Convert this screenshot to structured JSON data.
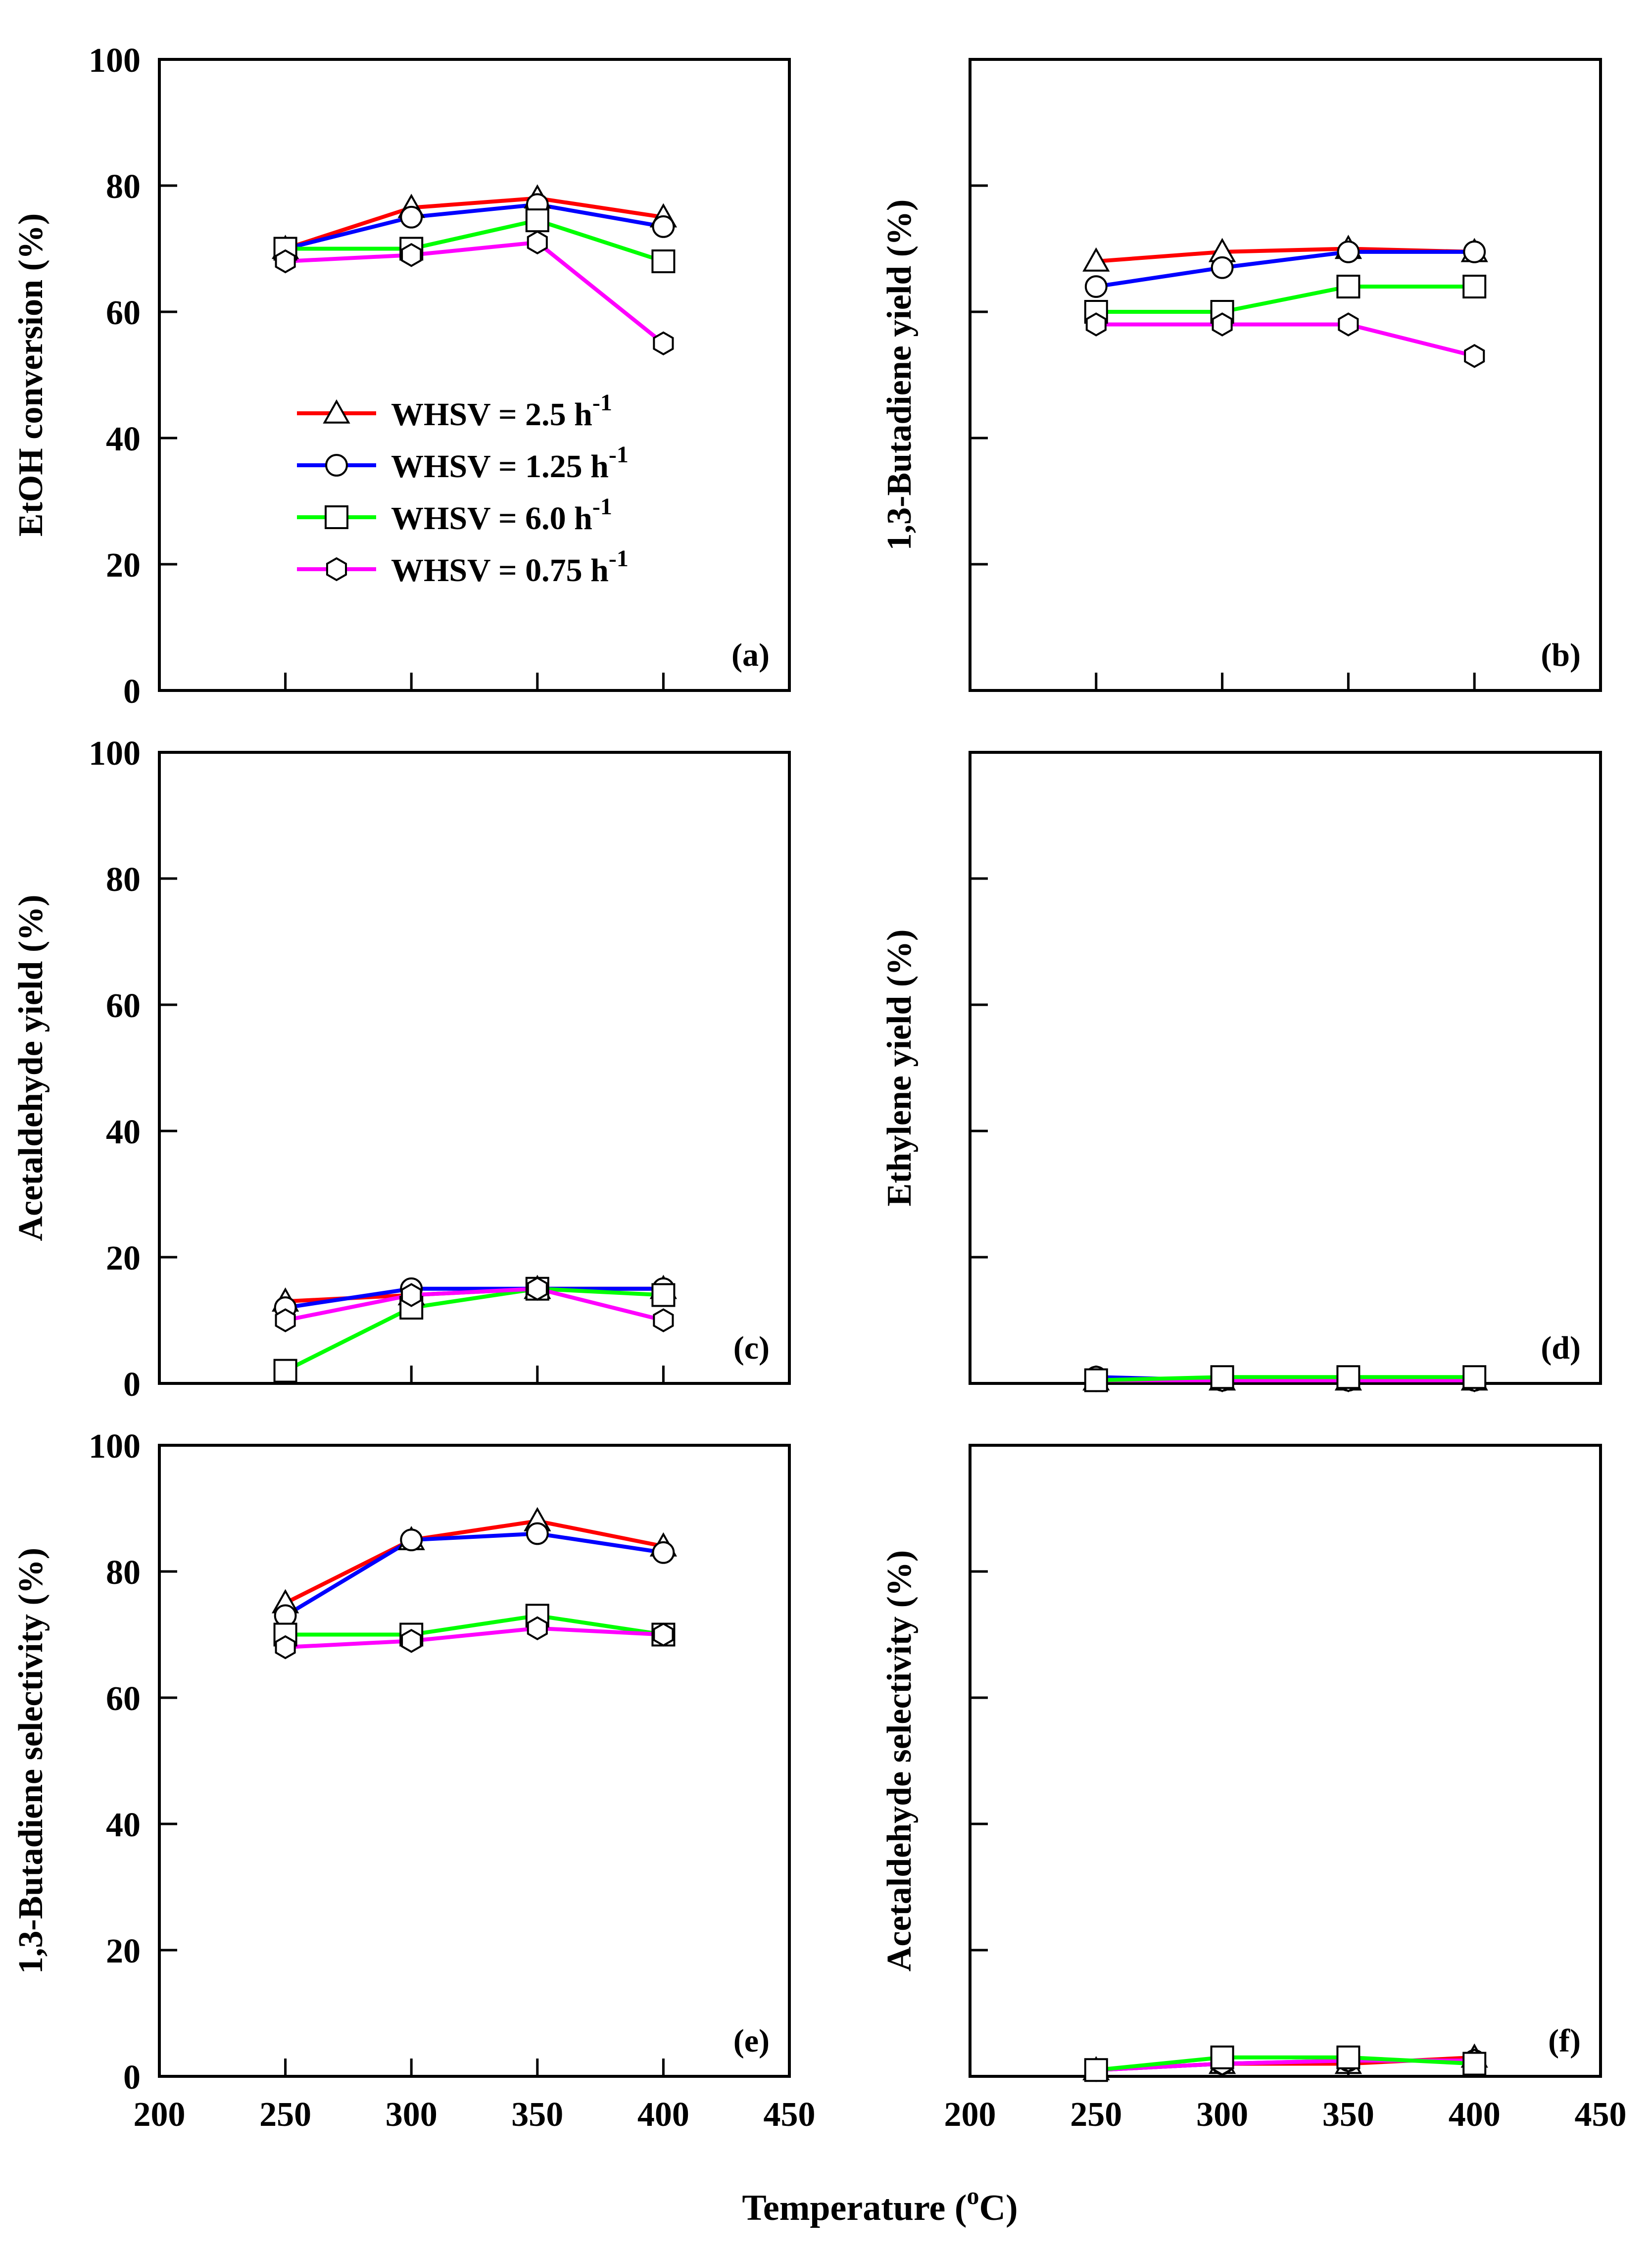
{
  "figure": {
    "xlabel_main": "Temperature (",
    "xlabel_sup": "o",
    "xlabel_tail": "C)"
  },
  "legend": {
    "label_prefix": "WHSV = ",
    "unit": "h",
    "unit_sup": "-1"
  },
  "chart_data": [
    {
      "type": "line",
      "panel": "(a)",
      "ylabel": "EtOH conversion (%)",
      "xlim": [
        200,
        450
      ],
      "ylim": [
        0,
        100
      ],
      "xticks": [
        200,
        250,
        300,
        350,
        400,
        450
      ],
      "yticks": [
        0,
        20,
        40,
        60,
        80,
        100
      ],
      "show_xticklabels": false,
      "show_yticklabels": true,
      "legend": "center-left",
      "x": [
        250,
        300,
        350,
        400
      ],
      "series": [
        {
          "name": "WHSV = 2.5 h-1",
          "value_label": "2.5",
          "color": "#ff0000",
          "marker": "triangle",
          "values": [
            70,
            76.5,
            78,
            75
          ]
        },
        {
          "name": "WHSV = 1.25 h-1",
          "value_label": "1.25",
          "color": "#0000ff",
          "marker": "circle",
          "values": [
            70,
            75,
            77,
            73.5
          ]
        },
        {
          "name": "WHSV = 6.0 h-1",
          "value_label": "6.0",
          "color": "#00ff00",
          "marker": "square",
          "values": [
            70,
            70,
            74.5,
            68
          ]
        },
        {
          "name": "WHSV = 0.75 h-1",
          "value_label": "0.75",
          "color": "#ff00ff",
          "marker": "hexagon",
          "values": [
            68,
            69,
            71,
            55
          ]
        }
      ]
    },
    {
      "type": "line",
      "panel": "(b)",
      "ylabel": "1,3-Butadiene yield (%)",
      "xlim": [
        200,
        450
      ],
      "ylim": [
        0,
        100
      ],
      "xticks": [
        200,
        250,
        300,
        350,
        400,
        450
      ],
      "yticks": [
        0,
        20,
        40,
        60,
        80,
        100
      ],
      "show_xticklabels": false,
      "show_yticklabels": false,
      "x": [
        250,
        300,
        350,
        400
      ],
      "series": [
        {
          "name": "WHSV = 2.5 h-1",
          "color": "#ff0000",
          "marker": "triangle",
          "values": [
            68,
            69.5,
            70,
            69.5
          ]
        },
        {
          "name": "WHSV = 1.25 h-1",
          "color": "#0000ff",
          "marker": "circle",
          "values": [
            64,
            67,
            69.5,
            69.5
          ]
        },
        {
          "name": "WHSV = 6.0 h-1",
          "color": "#00ff00",
          "marker": "square",
          "values": [
            60,
            60,
            64,
            64
          ]
        },
        {
          "name": "WHSV = 0.75 h-1",
          "color": "#ff00ff",
          "marker": "hexagon",
          "values": [
            58,
            58,
            58,
            53
          ]
        }
      ]
    },
    {
      "type": "line",
      "panel": "(c)",
      "ylabel": "Acetaldehyde yield (%)",
      "xlim": [
        200,
        450
      ],
      "ylim": [
        0,
        100
      ],
      "xticks": [
        200,
        250,
        300,
        350,
        400,
        450
      ],
      "yticks": [
        0,
        20,
        40,
        60,
        80,
        100
      ],
      "show_xticklabels": false,
      "show_yticklabels": true,
      "x": [
        250,
        300,
        350,
        400
      ],
      "series": [
        {
          "name": "WHSV = 2.5 h-1",
          "color": "#ff0000",
          "marker": "triangle",
          "values": [
            13,
            14,
            15,
            15
          ]
        },
        {
          "name": "WHSV = 1.25 h-1",
          "color": "#0000ff",
          "marker": "circle",
          "values": [
            12,
            15,
            15,
            15
          ]
        },
        {
          "name": "WHSV = 6.0 h-1",
          "color": "#00ff00",
          "marker": "square",
          "values": [
            2,
            12,
            15,
            14
          ]
        },
        {
          "name": "WHSV = 0.75 h-1",
          "color": "#ff00ff",
          "marker": "hexagon",
          "values": [
            10,
            14,
            15,
            10
          ]
        }
      ]
    },
    {
      "type": "line",
      "panel": "(d)",
      "ylabel": "Ethylene yield (%)",
      "xlim": [
        200,
        450
      ],
      "ylim": [
        0,
        100
      ],
      "xticks": [
        200,
        250,
        300,
        350,
        400,
        450
      ],
      "yticks": [
        0,
        20,
        40,
        60,
        80,
        100
      ],
      "show_xticklabels": false,
      "show_yticklabels": false,
      "x": [
        250,
        300,
        350,
        400
      ],
      "series": [
        {
          "name": "WHSV = 2.5 h-1",
          "color": "#ff0000",
          "marker": "triangle",
          "values": [
            0.5,
            0.5,
            0.5,
            0.5
          ]
        },
        {
          "name": "WHSV = 1.25 h-1",
          "color": "#0000ff",
          "marker": "circle",
          "values": [
            1,
            0.5,
            0.5,
            0.5
          ]
        },
        {
          "name": "WHSV = 0.75 h-1",
          "color": "#ff00ff",
          "marker": "hexagon",
          "values": [
            0.5,
            0.5,
            0.5,
            0.5
          ]
        },
        {
          "name": "WHSV = 6.0 h-1",
          "color": "#00ff00",
          "marker": "square",
          "values": [
            0.5,
            1,
            1,
            1
          ]
        }
      ]
    },
    {
      "type": "line",
      "panel": "(e)",
      "ylabel": "1,3-Butadiene selectivity (%)",
      "xlim": [
        200,
        450
      ],
      "ylim": [
        0,
        100
      ],
      "xticks": [
        200,
        250,
        300,
        350,
        400,
        450
      ],
      "yticks": [
        0,
        20,
        40,
        60,
        80,
        100
      ],
      "show_xticklabels": true,
      "show_yticklabels": true,
      "x": [
        250,
        300,
        350,
        400
      ],
      "series": [
        {
          "name": "WHSV = 2.5 h-1",
          "color": "#ff0000",
          "marker": "triangle",
          "values": [
            75,
            85,
            88,
            84
          ]
        },
        {
          "name": "WHSV = 1.25 h-1",
          "color": "#0000ff",
          "marker": "circle",
          "values": [
            73,
            85,
            86,
            83
          ]
        },
        {
          "name": "WHSV = 6.0 h-1",
          "color": "#00ff00",
          "marker": "square",
          "values": [
            70,
            70,
            73,
            70
          ]
        },
        {
          "name": "WHSV = 0.75 h-1",
          "color": "#ff00ff",
          "marker": "hexagon",
          "values": [
            68,
            69,
            71,
            70
          ]
        }
      ]
    },
    {
      "type": "line",
      "panel": "(f)",
      "ylabel": "Acetaldehyde selectivity (%)",
      "xlim": [
        200,
        450
      ],
      "ylim": [
        0,
        100
      ],
      "xticks": [
        200,
        250,
        300,
        350,
        400,
        450
      ],
      "yticks": [
        0,
        20,
        40,
        60,
        80,
        100
      ],
      "show_xticklabels": true,
      "show_yticklabels": false,
      "x": [
        250,
        300,
        350,
        400
      ],
      "series": [
        {
          "name": "WHSV = 2.5 h-1",
          "color": "#ff0000",
          "marker": "triangle",
          "values": [
            1,
            2,
            2,
            3
          ]
        },
        {
          "name": "WHSV = 1.25 h-1",
          "color": "#0000ff",
          "marker": "circle",
          "values": [
            1,
            2,
            2.5,
            2.5
          ]
        },
        {
          "name": "WHSV = 0.75 h-1",
          "color": "#ff00ff",
          "marker": "hexagon",
          "values": [
            1,
            2,
            2.5,
            2.5
          ]
        },
        {
          "name": "WHSV = 6.0 h-1",
          "color": "#00ff00",
          "marker": "square",
          "values": [
            1,
            3,
            3,
            2
          ]
        }
      ]
    }
  ]
}
